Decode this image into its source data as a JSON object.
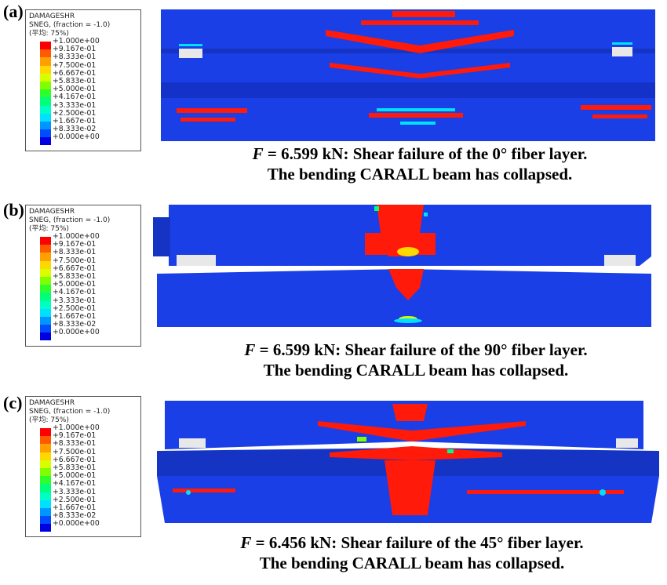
{
  "panels": [
    {
      "tag": "(a)",
      "legend": {
        "title": "DAMAGESHR",
        "subtitle": "SNEG, (fraction = -1.0)",
        "avg": "(平均: 75%)",
        "values": [
          "+1.000e+00",
          "+9.167e-01",
          "+8.333e-01",
          "+7.500e-01",
          "+6.667e-01",
          "+5.833e-01",
          "+5.000e-01",
          "+4.167e-01",
          "+3.333e-01",
          "+2.500e-01",
          "+1.667e-01",
          "+8.333e-02",
          "+0.000e+00"
        ]
      },
      "caption": {
        "force_symbol": "F",
        "force_text": " = 6.599 kN: Shear failure of the 0° fiber layer.",
        "line2": "The bending CARALL beam has collapsed."
      }
    },
    {
      "tag": "(b)",
      "legend": {
        "title": "DAMAGESHR",
        "subtitle": "SNEG, (fraction = -1.0)",
        "avg": "(平均: 75%)",
        "values": [
          "+1.000e+00",
          "+9.167e-01",
          "+8.333e-01",
          "+7.500e-01",
          "+6.667e-01",
          "+5.833e-01",
          "+5.000e-01",
          "+4.167e-01",
          "+3.333e-01",
          "+2.500e-01",
          "+1.667e-01",
          "+8.333e-02",
          "+0.000e+00"
        ]
      },
      "caption": {
        "force_symbol": "F",
        "force_text": " = 6.599 kN: Shear failure of the 90° fiber layer.",
        "line2": "The bending CARALL beam has collapsed."
      }
    },
    {
      "tag": "(c)",
      "legend": {
        "title": "DAMAGESHR",
        "subtitle": "SNEG, (fraction = -1.0)",
        "avg": "(平均: 75%)",
        "values": [
          "+1.000e+00",
          "+9.167e-01",
          "+8.333e-01",
          "+7.500e-01",
          "+6.667e-01",
          "+5.833e-01",
          "+5.000e-01",
          "+4.167e-01",
          "+3.333e-01",
          "+2.500e-01",
          "+1.667e-01",
          "+8.333e-02",
          "+0.000e+00"
        ]
      },
      "caption": {
        "force_symbol": "F",
        "force_text": " = 6.456 kN: Shear failure of the 45° fiber layer.",
        "line2": "The bending CARALL beam has collapsed."
      }
    }
  ],
  "colors": {
    "scale": [
      "#ff0000",
      "#ff5a00",
      "#ff9f00",
      "#ffd800",
      "#d8ff00",
      "#7fff00",
      "#2cff2c",
      "#00ff7a",
      "#00ffc4",
      "#00e0ff",
      "#0096ff",
      "#004cff",
      "#0000e0"
    ],
    "beam": "#1a3fe6",
    "beam_dark": "#1534c4",
    "damage": "#ff1a0a"
  }
}
